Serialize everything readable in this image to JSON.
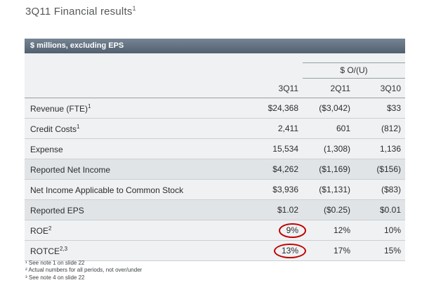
{
  "title": {
    "text": "3Q11 Financial results",
    "sup": "1"
  },
  "colors": {
    "header_bar": "#5f7081",
    "annotation_red": "#c00000"
  },
  "table": {
    "band_label": "$ millions, excluding EPS",
    "ou_header": "$ O/(U)",
    "columns": [
      "3Q11",
      "2Q11",
      "3Q10"
    ],
    "rows": [
      {
        "label": "Revenue (FTE)",
        "sup": "1",
        "values": [
          "$24,368",
          "($3,042)",
          "$33"
        ],
        "shaded": false,
        "circled": false
      },
      {
        "label": "Credit Costs",
        "sup": "1",
        "values": [
          "2,411",
          "601",
          "(812)"
        ],
        "shaded": false,
        "circled": false
      },
      {
        "label": "Expense",
        "sup": "",
        "values": [
          "15,534",
          "(1,308)",
          "1,136"
        ],
        "shaded": false,
        "circled": false
      },
      {
        "label": "Reported Net Income",
        "sup": "",
        "values": [
          "$4,262",
          "($1,169)",
          "($156)"
        ],
        "shaded": true,
        "circled": false
      },
      {
        "label": "Net Income Applicable to Common Stock",
        "sup": "",
        "values": [
          "$3,936",
          "($1,131)",
          "($83)"
        ],
        "shaded": false,
        "circled": false
      },
      {
        "label": "Reported EPS",
        "sup": "",
        "values": [
          "$1.02",
          "($0.25)",
          "$0.01"
        ],
        "shaded": true,
        "circled": false
      },
      {
        "label": "ROE",
        "sup": "2",
        "values": [
          "9%",
          "12%",
          "10%"
        ],
        "shaded": false,
        "circled": true
      },
      {
        "label": "ROTCE",
        "sup": "2,3",
        "values": [
          "13%",
          "17%",
          "15%"
        ],
        "shaded": false,
        "circled": true
      }
    ]
  },
  "footnotes": [
    "¹ See note 1 on slide 22",
    "² Actual numbers for all periods, not over/under",
    "³ See note 4 on slide 22"
  ]
}
